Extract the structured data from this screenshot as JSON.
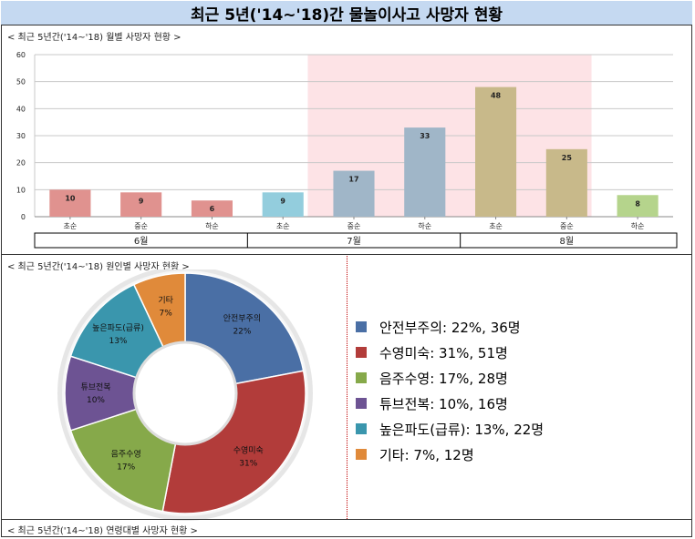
{
  "title": "최근 5년('14~'18)간 물놀이사고 사망자 현황",
  "sections": {
    "monthly": "< 최근 5년간('14~'18) 월별 사망자 현황 >",
    "cause": "< 최근 5년간('14~'18) 원인별 사망자 현황 >",
    "age": "< 최근 5년간('14~'18) 연령대별 사망자 현황 >"
  },
  "legend": [
    {
      "text": "안전부주의: 22%, 36명",
      "color": "#4a6fa5"
    },
    {
      "text": "수영미숙: 31%, 51명",
      "color": "#b23c3a"
    },
    {
      "text": "음주수영: 17%, 28명",
      "color": "#86a94a"
    },
    {
      "text": "튜브전복: 10%, 16명",
      "color": "#6d5393"
    },
    {
      "text": "높은파도(급류): 13%, 22명",
      "color": "#3a96ad"
    },
    {
      "text": "기타: 7%, 12명",
      "color": "#e08a3a"
    }
  ],
  "chart_data": [
    {
      "type": "bar",
      "categories": [
        "초순",
        "중순",
        "하순",
        "초순",
        "중순",
        "하순",
        "초순",
        "중순",
        "하순"
      ],
      "groups": [
        {
          "label": "6월",
          "span": [
            0,
            2
          ]
        },
        {
          "label": "7월",
          "span": [
            3,
            5
          ]
        },
        {
          "label": "8월",
          "span": [
            6,
            8
          ]
        }
      ],
      "values": [
        10,
        9,
        6,
        9,
        17,
        33,
        48,
        25,
        8
      ],
      "colors": [
        "#e0928f",
        "#e0928f",
        "#e0928f",
        "#93cddd",
        "#a0b6c8",
        "#a0b6c8",
        "#c8b98a",
        "#c8b98a",
        "#b5d48c"
      ],
      "highlight_band": [
        4,
        7
      ],
      "highlight_color": "#fde3e6",
      "ylim": [
        0,
        60
      ],
      "yticks": [
        0,
        10,
        20,
        30,
        40,
        50,
        60
      ],
      "grid": true
    },
    {
      "type": "pie",
      "donut": true,
      "slices": [
        {
          "label": "안전부주의",
          "pct_label": "22%",
          "value": 22,
          "color": "#4a6fa5"
        },
        {
          "label": "수영미숙",
          "pct_label": "31%",
          "value": 31,
          "color": "#b23c3a"
        },
        {
          "label": "음주수영",
          "pct_label": "17%",
          "value": 17,
          "color": "#86a94a"
        },
        {
          "label": "튜브전복",
          "pct_label": "10%",
          "value": 10,
          "color": "#6d5393"
        },
        {
          "label": "높은파도(급류)",
          "pct_label": "13%",
          "value": 13,
          "color": "#3a96ad"
        },
        {
          "label": "기타",
          "pct_label": "7%",
          "value": 7,
          "color": "#e08a3a"
        }
      ]
    }
  ]
}
